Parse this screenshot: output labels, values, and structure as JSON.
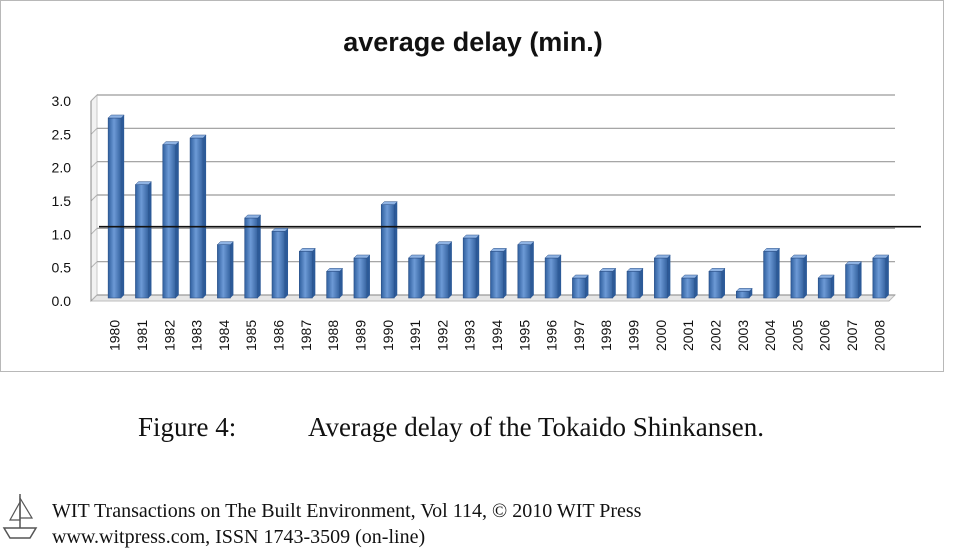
{
  "chart_data": {
    "type": "bar",
    "title": "average delay (min.)",
    "xlabel": "",
    "ylabel": "",
    "ylim": [
      0,
      3.0
    ],
    "yticks": [
      "0.0",
      "0.5",
      "1.0",
      "1.5",
      "2.0",
      "2.5",
      "3.0"
    ],
    "grid": true,
    "categories": [
      "1980",
      "1981",
      "1982",
      "1983",
      "1984",
      "1985",
      "1986",
      "1987",
      "1988",
      "1989",
      "1990",
      "1991",
      "1992",
      "1993",
      "1994",
      "1995",
      "1996",
      "1997",
      "1998",
      "1999",
      "2000",
      "2001",
      "2002",
      "2003",
      "2004",
      "2005",
      "2006",
      "2007",
      "2008"
    ],
    "values": [
      2.7,
      1.7,
      2.3,
      2.4,
      0.8,
      1.2,
      1.0,
      0.7,
      0.4,
      0.6,
      1.4,
      0.6,
      0.8,
      0.9,
      0.7,
      0.8,
      0.6,
      0.3,
      0.4,
      0.4,
      0.6,
      0.3,
      0.4,
      0.1,
      0.7,
      0.6,
      0.3,
      0.5,
      0.6
    ],
    "reference_line": 1.1,
    "bar_color": "#4a7cc0"
  },
  "caption": {
    "label": "Figure 4:",
    "text": "Average delay of the Tokaido Shinkansen."
  },
  "footer": {
    "line1": "WIT Transactions on The Built Environment, Vol 114,  © 2010 WIT Press",
    "line2": "www.witpress.com, ISSN 1743-3509 (on-line)"
  },
  "logo": {
    "icon": "ship-logo-icon"
  }
}
